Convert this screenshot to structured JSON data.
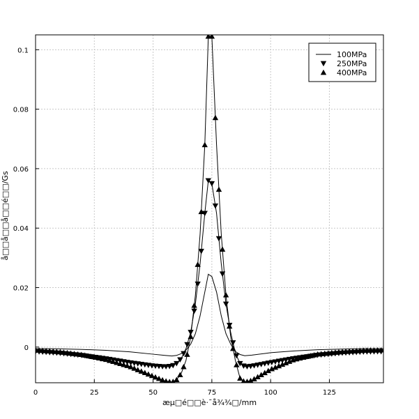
{
  "chart_data": {
    "type": "line",
    "title": "",
    "xlabel": "æµ□é□□è·¯å¾¾□/mm",
    "ylabel": "å□□å□□å□□é□□/Gs",
    "xlim": [
      0,
      148
    ],
    "ylim": [
      -0.012,
      0.105
    ],
    "x_ticks": [
      0,
      25,
      50,
      75,
      100,
      125
    ],
    "y_ticks": [
      0,
      0.02,
      0.04,
      0.06,
      0.08,
      0.1
    ],
    "x_tick_labels": [
      "0",
      "25",
      "50",
      "75",
      "100",
      "125"
    ],
    "y_tick_labels": [
      "0",
      "0.02",
      "0.04",
      "0.06",
      "0.08",
      "0.1"
    ],
    "grid": true,
    "legend_position": "top-right",
    "series": [
      {
        "name": "100MPa",
        "marker": "none",
        "x": [
          0,
          10,
          20,
          30,
          40,
          50,
          55,
          58,
          60,
          62,
          64,
          66,
          68,
          70,
          72,
          73.5,
          75,
          77,
          79,
          81,
          83,
          85,
          87,
          89,
          92,
          100,
          110,
          120,
          130,
          140,
          148
        ],
        "y": [
          -0.0005,
          -0.0006,
          -0.0008,
          -0.0011,
          -0.0016,
          -0.0024,
          -0.0028,
          -0.003,
          -0.0028,
          -0.0022,
          -0.001,
          0.001,
          0.0045,
          0.0105,
          0.0185,
          0.0245,
          0.0237,
          0.0185,
          0.0105,
          0.0045,
          0.001,
          -0.0015,
          -0.0025,
          -0.0029,
          -0.0027,
          -0.0019,
          -0.0013,
          -0.0009,
          -0.0007,
          -0.0005,
          -0.0005
        ]
      },
      {
        "name": "250MPa",
        "marker": "triangle-down",
        "x": [
          0,
          10,
          20,
          30,
          40,
          50,
          55,
          58,
          60,
          62,
          64,
          66,
          68,
          70,
          72,
          73.5,
          75,
          77,
          79,
          81,
          83,
          85,
          87,
          89,
          92,
          100,
          110,
          120,
          130,
          140,
          148
        ],
        "y": [
          -0.0015,
          -0.002,
          -0.0028,
          -0.0039,
          -0.0052,
          -0.0063,
          -0.0066,
          -0.0064,
          -0.0055,
          -0.0038,
          -0.0005,
          0.005,
          0.0145,
          0.028,
          0.045,
          0.056,
          0.055,
          0.045,
          0.028,
          0.0145,
          0.005,
          -0.002,
          -0.0055,
          -0.0066,
          -0.0064,
          -0.0052,
          -0.0038,
          -0.0027,
          -0.002,
          -0.0016,
          -0.0015
        ]
      },
      {
        "name": "400MPa",
        "marker": "triangle-up",
        "x": [
          0,
          10,
          20,
          30,
          40,
          50,
          55,
          58,
          60,
          62,
          64,
          66,
          68,
          70,
          72,
          73.5,
          75,
          77,
          79,
          81,
          83,
          85,
          87,
          89,
          92,
          100,
          110,
          120,
          130,
          140,
          148
        ],
        "y": [
          -0.001,
          -0.0016,
          -0.0026,
          -0.0042,
          -0.0065,
          -0.0098,
          -0.0114,
          -0.0118,
          -0.011,
          -0.0088,
          -0.0045,
          0.0035,
          0.0175,
          0.038,
          0.068,
          0.1045,
          0.1045,
          0.068,
          0.038,
          0.0175,
          0.0035,
          -0.0045,
          -0.0105,
          -0.0118,
          -0.0112,
          -0.0075,
          -0.0042,
          -0.0024,
          -0.0016,
          -0.0011,
          -0.001
        ]
      }
    ]
  }
}
